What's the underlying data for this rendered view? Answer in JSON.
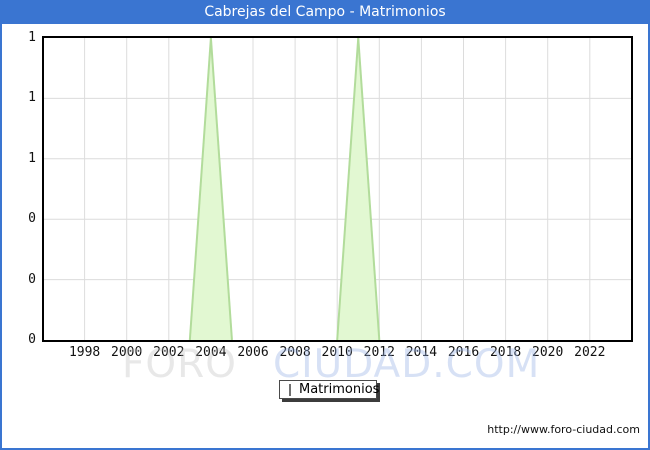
{
  "header": {
    "title": "Cabrejas del Campo - Matrimonios"
  },
  "legend": {
    "label": "Matrimonios",
    "swatch_color": "#c9f295"
  },
  "watermark": {
    "part1": "FORO",
    "part2": "CIUDAD.COM"
  },
  "footer": {
    "url": "http://www.foro-ciudad.com"
  },
  "colors": {
    "accent_blue": "#3a75d1",
    "grid": "#dcdcdc",
    "area_fill": "#e2f8d2",
    "area_stroke": "#b2dc9b"
  },
  "chart_data": {
    "type": "area",
    "title": "Cabrejas del Campo - Matrimonios",
    "x": [
      1996,
      1997,
      1998,
      1999,
      2000,
      2001,
      2002,
      2003,
      2004,
      2005,
      2006,
      2007,
      2008,
      2009,
      2010,
      2011,
      2012,
      2013,
      2014,
      2015,
      2016,
      2017,
      2018,
      2019,
      2020,
      2021,
      2022,
      2023
    ],
    "series": [
      {
        "name": "Matrimonios",
        "values": [
          0,
          0,
          0,
          0,
          0,
          0,
          0,
          0,
          1,
          0,
          0,
          0,
          0,
          0,
          0,
          1,
          0,
          0,
          0,
          0,
          0,
          0,
          0,
          0,
          0,
          0,
          0,
          0
        ]
      }
    ],
    "x_tick_years": [
      1998,
      2000,
      2002,
      2004,
      2006,
      2008,
      2010,
      2012,
      2014,
      2016,
      2018,
      2020,
      2022
    ],
    "y_ticks": [
      {
        "value": 1.0,
        "label": "1"
      },
      {
        "value": 0.8,
        "label": "1"
      },
      {
        "value": 0.6,
        "label": "1"
      },
      {
        "value": 0.4,
        "label": "0"
      },
      {
        "value": 0.2,
        "label": "0"
      },
      {
        "value": 0.0,
        "label": "0"
      }
    ],
    "ylim": [
      0,
      1
    ],
    "xlabel": "",
    "ylabel": "",
    "grid": true,
    "legend_position": "bottom",
    "notable_points": [
      {
        "year": 2004,
        "value": 1
      },
      {
        "year": 2011,
        "value": 1
      }
    ]
  }
}
